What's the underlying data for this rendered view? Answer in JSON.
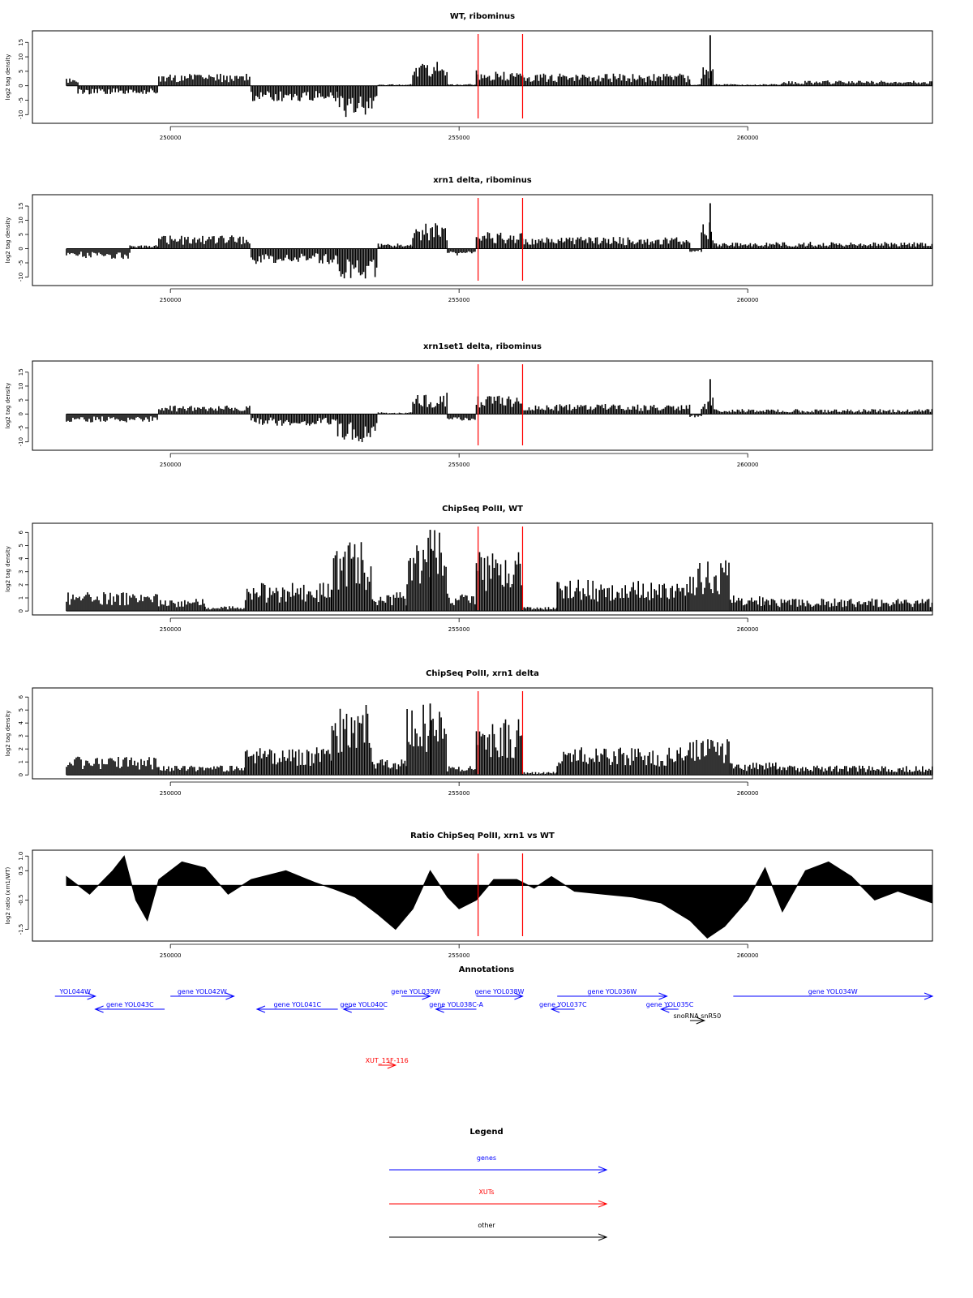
{
  "figure": {
    "x_ticks": [
      "250000",
      "255000",
      "260000"
    ],
    "x_tick_values": [
      250000,
      255000,
      260000
    ],
    "x_range": [
      248200,
      263200
    ],
    "region_markers": [
      255330,
      256100
    ],
    "annotations_title": "Annotations",
    "legend_title": "Legend"
  },
  "colors": {
    "genes": "#0000ff",
    "xuts": "#ff0000",
    "other": "#000000",
    "marker": "#ff0000",
    "signal": "#000000"
  },
  "chart_data": [
    {
      "type": "bar",
      "title": "WT, ribominus",
      "ylabel": "log2 tag density",
      "ylim": [
        -13,
        19
      ],
      "yticks": [
        -10,
        -5,
        0,
        5,
        10,
        15
      ],
      "ytick_labels": [
        "-10",
        "-5",
        "0",
        "5",
        "10",
        "15"
      ],
      "segments": [
        {
          "x": [
            248200,
            248400
          ],
          "y": 2.5
        },
        {
          "x": [
            248400,
            249800
          ],
          "y": -2.5
        },
        {
          "x": [
            249800,
            251400
          ],
          "y": 3.5
        },
        {
          "x": [
            251400,
            252900
          ],
          "y": -4.5
        },
        {
          "x": [
            252900,
            253600
          ],
          "y": -9
        },
        {
          "x": [
            253600,
            254200
          ],
          "y": 0.5
        },
        {
          "x": [
            254200,
            254800
          ],
          "y": 7
        },
        {
          "x": [
            254800,
            255300
          ],
          "y": 0.5
        },
        {
          "x": [
            255300,
            256100
          ],
          "y": 4.5
        },
        {
          "x": [
            256100,
            259000
          ],
          "y": 3.5
        },
        {
          "x": [
            259000,
            259200
          ],
          "y": 0.5
        },
        {
          "x": [
            259200,
            259400
          ],
          "y": 6
        },
        {
          "x": [
            259400,
            260600
          ],
          "y": 0.5
        },
        {
          "x": [
            260600,
            263200
          ],
          "y": 1.5
        }
      ],
      "peaks": [
        {
          "x": 259350,
          "y": 17.5
        }
      ]
    },
    {
      "type": "bar",
      "title": "xrn1 delta, ribominus",
      "ylabel": "log2 tag density",
      "ylim": [
        -13,
        19
      ],
      "yticks": [
        -10,
        -5,
        0,
        5,
        10,
        15
      ],
      "ytick_labels": [
        "-10",
        "-5",
        "0",
        "5",
        "10",
        "15"
      ],
      "segments": [
        {
          "x": [
            248200,
            249300
          ],
          "y": -3
        },
        {
          "x": [
            249300,
            249800
          ],
          "y": 1
        },
        {
          "x": [
            249800,
            251400
          ],
          "y": 4
        },
        {
          "x": [
            251400,
            252900
          ],
          "y": -4.5
        },
        {
          "x": [
            252900,
            253600
          ],
          "y": -9
        },
        {
          "x": [
            253600,
            254200
          ],
          "y": 1.5
        },
        {
          "x": [
            254200,
            254800
          ],
          "y": 7.5
        },
        {
          "x": [
            254800,
            255300
          ],
          "y": -2
        },
        {
          "x": [
            255300,
            256100
          ],
          "y": 5
        },
        {
          "x": [
            256100,
            259000
          ],
          "y": 3.5
        },
        {
          "x": [
            259000,
            259200
          ],
          "y": -1
        },
        {
          "x": [
            259200,
            259400
          ],
          "y": 8
        },
        {
          "x": [
            259400,
            263200
          ],
          "y": 2
        }
      ],
      "peaks": [
        {
          "x": 259350,
          "y": 16
        }
      ]
    },
    {
      "type": "bar",
      "title": "xrn1set1 delta, ribominus",
      "ylabel": "log2 tag density",
      "ylim": [
        -13,
        19
      ],
      "yticks": [
        -10,
        -5,
        0,
        5,
        10,
        15
      ],
      "ytick_labels": [
        "-10",
        "-5",
        "0",
        "5",
        "10",
        "15"
      ],
      "segments": [
        {
          "x": [
            248200,
            249800
          ],
          "y": -2.5
        },
        {
          "x": [
            249800,
            251400
          ],
          "y": 2.5
        },
        {
          "x": [
            251400,
            252900
          ],
          "y": -3.5
        },
        {
          "x": [
            252900,
            253600
          ],
          "y": -8.5
        },
        {
          "x": [
            253600,
            254200
          ],
          "y": 0.5
        },
        {
          "x": [
            254200,
            254800
          ],
          "y": 6.5
        },
        {
          "x": [
            254800,
            255300
          ],
          "y": -2
        },
        {
          "x": [
            255300,
            256100
          ],
          "y": 5.5
        },
        {
          "x": [
            256100,
            259000
          ],
          "y": 3
        },
        {
          "x": [
            259000,
            259200
          ],
          "y": -1
        },
        {
          "x": [
            259200,
            259400
          ],
          "y": 5
        },
        {
          "x": [
            259400,
            263200
          ],
          "y": 1.5
        }
      ],
      "peaks": [
        {
          "x": 259350,
          "y": 12.5
        }
      ]
    },
    {
      "type": "bar",
      "title": "ChipSeq PolII, WT",
      "ylabel": "log2 tag density",
      "ylim": [
        -0.3,
        6.7
      ],
      "yticks": [
        0,
        1,
        2,
        3,
        4,
        5,
        6
      ],
      "ytick_labels": [
        "0",
        "1",
        "2",
        "3",
        "4",
        "5",
        "6"
      ],
      "segments": [
        {
          "x": [
            248200,
            249800
          ],
          "y": 1.2
        },
        {
          "x": [
            249800,
            250600
          ],
          "y": 0.8
        },
        {
          "x": [
            250600,
            251300
          ],
          "y": 0.3
        },
        {
          "x": [
            251300,
            252800
          ],
          "y": 1.8
        },
        {
          "x": [
            252800,
            253500
          ],
          "y": 4.5
        },
        {
          "x": [
            253500,
            254100
          ],
          "y": 1.2
        },
        {
          "x": [
            254100,
            254800
          ],
          "y": 5.2
        },
        {
          "x": [
            254800,
            255300
          ],
          "y": 1.2
        },
        {
          "x": [
            255300,
            256100
          ],
          "y": 3.8
        },
        {
          "x": [
            256100,
            256700
          ],
          "y": 0.3
        },
        {
          "x": [
            256700,
            259000
          ],
          "y": 2.0
        },
        {
          "x": [
            259000,
            259700
          ],
          "y": 3.3
        },
        {
          "x": [
            259700,
            260300
          ],
          "y": 1.0
        },
        {
          "x": [
            260300,
            263200
          ],
          "y": 0.8
        }
      ],
      "peaks": [
        {
          "x": 254500,
          "y": 6.2
        }
      ]
    },
    {
      "type": "bar",
      "title": "ChipSeq PolII, xrn1 delta",
      "ylabel": "log2 tag density",
      "ylim": [
        -0.3,
        6.7
      ],
      "yticks": [
        0,
        1,
        2,
        3,
        4,
        5,
        6
      ],
      "ytick_labels": [
        "0",
        "1",
        "2",
        "3",
        "4",
        "5",
        "6"
      ],
      "segments": [
        {
          "x": [
            248200,
            249800
          ],
          "y": 1.2
        },
        {
          "x": [
            249800,
            251300
          ],
          "y": 0.6
        },
        {
          "x": [
            251300,
            252800
          ],
          "y": 1.8
        },
        {
          "x": [
            252800,
            253500
          ],
          "y": 4.5
        },
        {
          "x": [
            253500,
            254100
          ],
          "y": 1.0
        },
        {
          "x": [
            254100,
            254800
          ],
          "y": 4.8
        },
        {
          "x": [
            254800,
            255300
          ],
          "y": 0.6
        },
        {
          "x": [
            255300,
            256100
          ],
          "y": 3.6
        },
        {
          "x": [
            256100,
            256700
          ],
          "y": 0.2
        },
        {
          "x": [
            256700,
            259000
          ],
          "y": 1.8
        },
        {
          "x": [
            259000,
            259700
          ],
          "y": 2.3
        },
        {
          "x": [
            259700,
            260500
          ],
          "y": 0.8
        },
        {
          "x": [
            260500,
            263200
          ],
          "y": 0.6
        }
      ],
      "peaks": [
        {
          "x": 254500,
          "y": 5.5
        }
      ]
    },
    {
      "type": "area",
      "title": "Ratio ChipSeq PolII, xrn1 vs WT",
      "ylabel": "log2 ratio (xrn1/WT)",
      "ylim": [
        -1.9,
        1.2
      ],
      "yticks": [
        -1.5,
        -0.5,
        0.5,
        1.0
      ],
      "ytick_labels": [
        "-1.5",
        "-0.5",
        "0.5",
        "1.0"
      ],
      "baseline": 0,
      "x": [
        248200,
        248600,
        249000,
        249200,
        249400,
        249600,
        249800,
        250200,
        250600,
        251000,
        251400,
        252000,
        252500,
        252800,
        253200,
        253600,
        253900,
        254200,
        254500,
        254800,
        255000,
        255300,
        255600,
        256000,
        256300,
        256600,
        257000,
        257500,
        258000,
        258500,
        259000,
        259300,
        259600,
        260000,
        260300,
        260600,
        261000,
        261400,
        261800,
        262200,
        262600,
        263200
      ],
      "y": [
        0.3,
        -0.3,
        0.5,
        1.0,
        -0.5,
        -1.2,
        0.2,
        0.8,
        0.6,
        -0.3,
        0.2,
        0.5,
        0.1,
        -0.1,
        -0.4,
        -1.0,
        -1.5,
        -0.8,
        0.5,
        -0.4,
        -0.8,
        -0.5,
        0.2,
        0.2,
        -0.1,
        0.3,
        -0.2,
        -0.3,
        -0.4,
        -0.6,
        -1.2,
        -1.8,
        -1.4,
        -0.5,
        0.6,
        -0.9,
        0.5,
        0.8,
        0.3,
        -0.5,
        -0.2,
        -0.6
      ]
    }
  ],
  "annotations": [
    {
      "label": "YOL044W",
      "x1": 248000,
      "x2": 248700,
      "dir": "right",
      "row": 0,
      "kind": "genes"
    },
    {
      "label": "gene YOL043C",
      "x1": 248700,
      "x2": 249900,
      "dir": "left",
      "row": 1,
      "kind": "genes"
    },
    {
      "label": "gene YOL042W",
      "x1": 250000,
      "x2": 251100,
      "dir": "right",
      "row": 0,
      "kind": "genes"
    },
    {
      "label": "gene YOL041C",
      "x1": 251500,
      "x2": 252900,
      "dir": "left",
      "row": 1,
      "kind": "genes"
    },
    {
      "label": "gene YOL040C",
      "x1": 253000,
      "x2": 253700,
      "dir": "left",
      "row": 1,
      "kind": "genes"
    },
    {
      "label": "gene YOL039W",
      "x1": 254000,
      "x2": 254500,
      "dir": "right",
      "row": 0,
      "kind": "genes"
    },
    {
      "label": "gene YOL038C-A",
      "x1": 254600,
      "x2": 255300,
      "dir": "left",
      "row": 1,
      "kind": "genes"
    },
    {
      "label": "gene YOL038W",
      "x1": 255300,
      "x2": 256100,
      "dir": "right",
      "row": 0,
      "kind": "genes"
    },
    {
      "label": "gene YOL037C",
      "x1": 256600,
      "x2": 257000,
      "dir": "left",
      "row": 1,
      "kind": "genes"
    },
    {
      "label": "gene YOL036W",
      "x1": 256700,
      "x2": 258600,
      "dir": "right",
      "row": 0,
      "kind": "genes"
    },
    {
      "label": "gene YOL035C",
      "x1": 258500,
      "x2": 258800,
      "dir": "left",
      "row": 1,
      "kind": "genes"
    },
    {
      "label": "snoRNA snR50",
      "x1": 259000,
      "x2": 259250,
      "dir": "right",
      "row": 2,
      "kind": "other"
    },
    {
      "label": "gene YOL034W",
      "x1": 259750,
      "x2": 263200,
      "dir": "right",
      "row": 0,
      "kind": "genes"
    },
    {
      "label": "XUT_15F-116",
      "x1": 253600,
      "x2": 253900,
      "dir": "right",
      "row": 4,
      "kind": "xuts"
    }
  ],
  "legend": [
    {
      "label": "genes",
      "kind": "genes"
    },
    {
      "label": "XUTs",
      "kind": "xuts"
    },
    {
      "label": "other",
      "kind": "other"
    }
  ]
}
